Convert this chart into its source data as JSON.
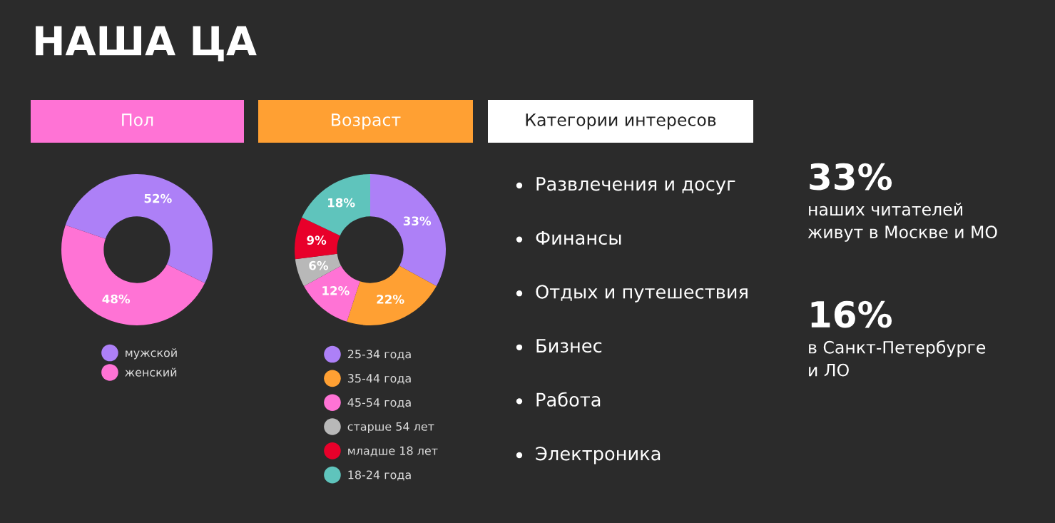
{
  "chart_data": [
    {
      "type": "donut",
      "title": "Пол",
      "annotations": [
        "НАША ЦА"
      ],
      "categories": [
        "мужской",
        "женский"
      ],
      "values": [
        52,
        48
      ],
      "colors": [
        "#ad80f7",
        "#ff73d5"
      ],
      "value_labels": [
        "52%",
        "48%"
      ],
      "legend": "bottom"
    },
    {
      "type": "donut",
      "title": "Возраст",
      "categories": [
        "25-34 года",
        "35-44 года",
        "45-54 года",
        "старше 54 лет",
        "младше 18 лет",
        "18-24 года"
      ],
      "values": [
        33,
        22,
        12,
        6,
        9,
        18
      ],
      "colors": [
        "#ad80f7",
        "#ffa033",
        "#ff73d5",
        "#b8b8b8",
        "#e8002a",
        "#5fc4bc"
      ],
      "value_labels": [
        "33%",
        "22%",
        "12%",
        "6%",
        "9%",
        "18%"
      ],
      "legend": "bottom"
    },
    {
      "type": "other",
      "title": "Категории интересов",
      "annotations": [
        "Развлечения и досуг",
        "Финансы",
        "Отдых и путешествия",
        "Бизнес",
        "Работа",
        "Электроника"
      ]
    },
    {
      "type": "other",
      "annotations": [
        "33%",
        "наших читателей\nживут в Москве и МО",
        "16%",
        "в Санкт-Петербурге\nи ЛО"
      ]
    }
  ]
}
